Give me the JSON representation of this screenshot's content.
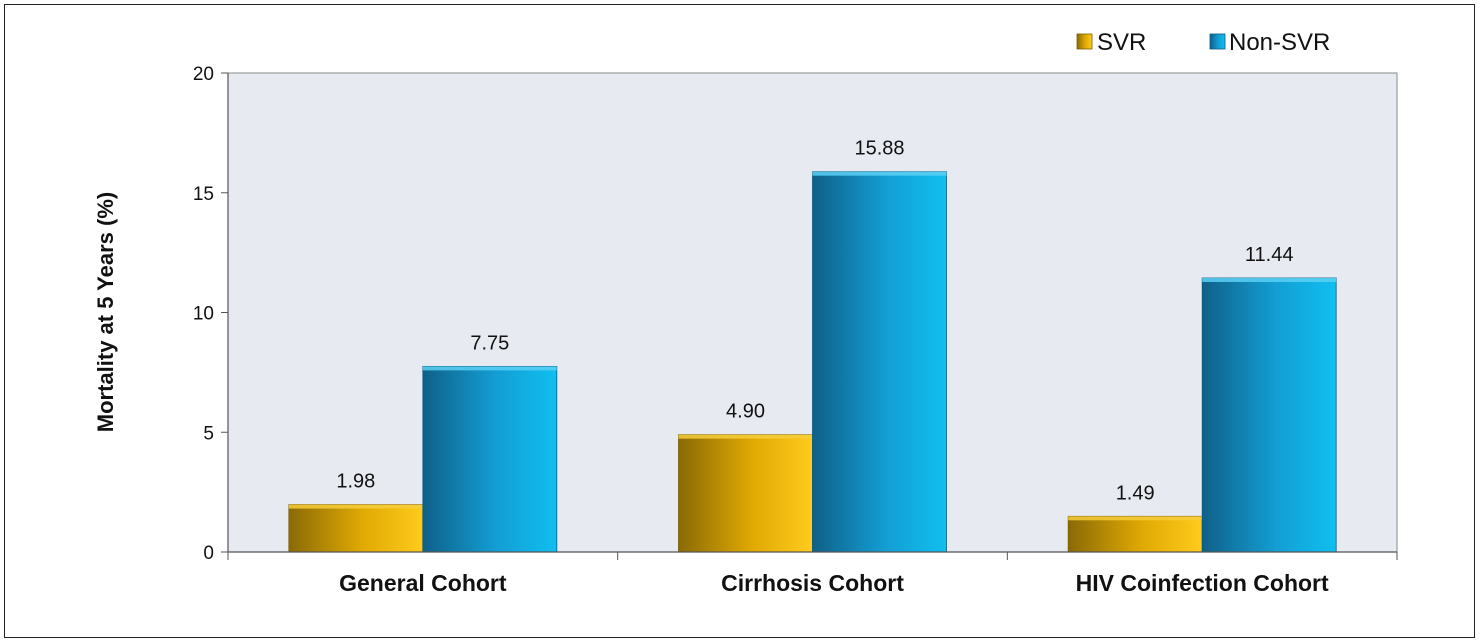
{
  "chart_data": {
    "type": "bar",
    "categories": [
      "General Cohort",
      "Cirrhosis Cohort",
      "HIV Coinfection Cohort"
    ],
    "series": [
      {
        "name": "SVR",
        "values": [
          1.98,
          4.9,
          1.49
        ],
        "labels": [
          "1.98",
          "4.90",
          "1.49"
        ],
        "color": "#f2b705"
      },
      {
        "name": "Non-SVR",
        "values": [
          7.75,
          15.88,
          11.44
        ],
        "labels": [
          "7.75",
          "15.88",
          "11.44"
        ],
        "color": "#16a7dc"
      }
    ],
    "ylabel": "Mortality at 5 Years (%)",
    "xlabel": "",
    "ylim": [
      0,
      20
    ],
    "yticks": [
      "0",
      "5",
      "10",
      "15",
      "20"
    ],
    "grid": false,
    "legend_position": "top-right",
    "plot_background": "#e8eaf2"
  }
}
